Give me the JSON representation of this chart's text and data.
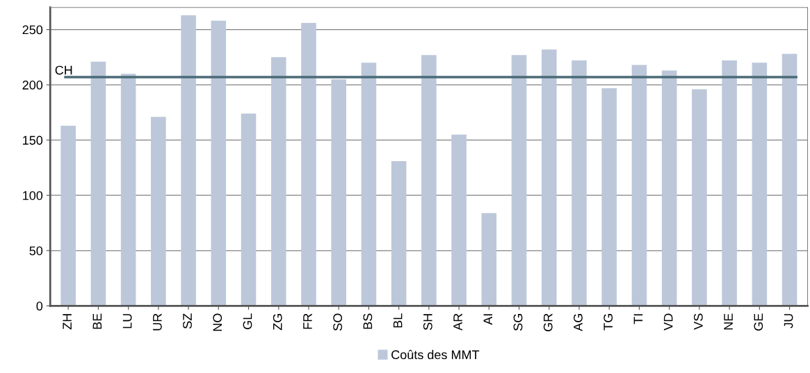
{
  "chart_data": {
    "type": "bar",
    "categories": [
      "ZH",
      "BE",
      "LU",
      "UR",
      "SZ",
      "NO",
      "GL",
      "ZG",
      "FR",
      "SO",
      "BS",
      "BL",
      "SH",
      "AR",
      "AI",
      "SG",
      "GR",
      "AG",
      "TG",
      "TI",
      "VD",
      "VS",
      "NE",
      "GE",
      "JU"
    ],
    "series": [
      {
        "name": "Coûts des MMT",
        "color": "#bcc8da",
        "values": [
          163,
          221,
          210,
          171,
          263,
          258,
          174,
          225,
          256,
          205,
          220,
          131,
          227,
          155,
          84,
          227,
          232,
          222,
          197,
          218,
          213,
          196,
          222,
          220,
          228
        ]
      }
    ],
    "ylim": [
      0,
      270
    ],
    "yticks": [
      0,
      50,
      100,
      150,
      200,
      250
    ],
    "grid": "y",
    "legend": "bottom",
    "ref_lines": [
      {
        "axis": "y",
        "value": 207,
        "label": "CH",
        "color": "#4a6b77"
      }
    ]
  }
}
